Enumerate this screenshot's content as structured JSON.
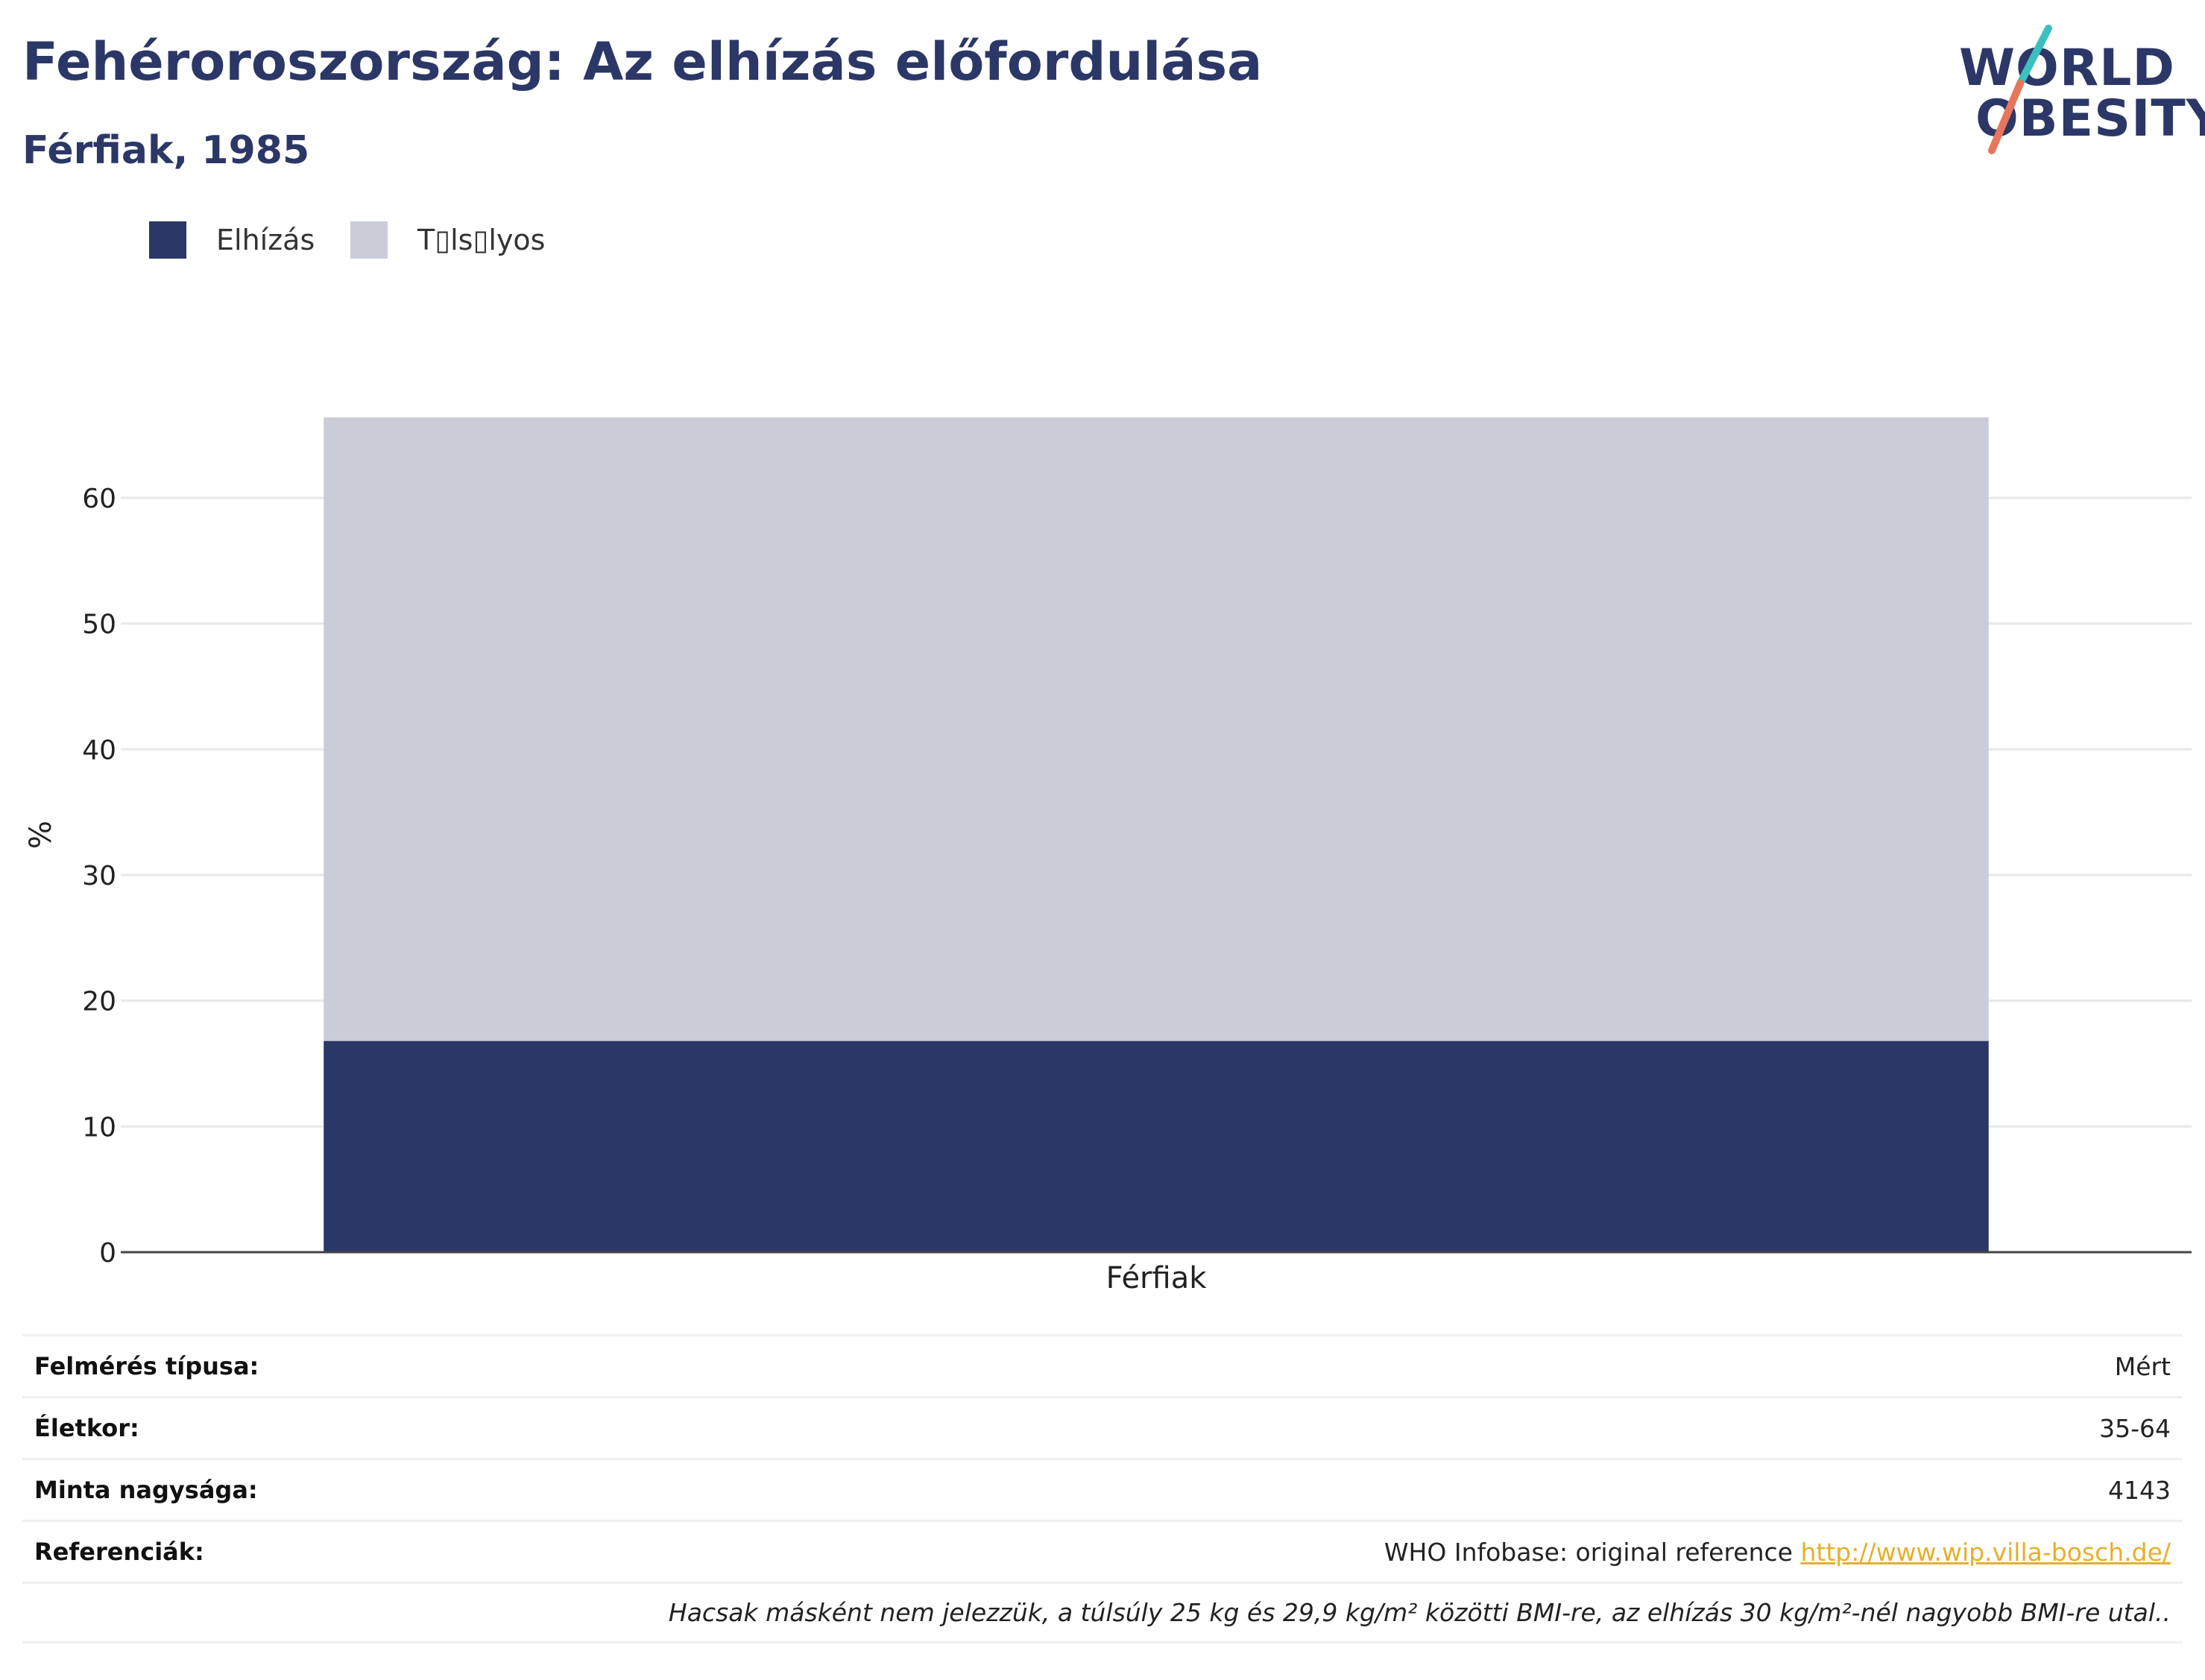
{
  "header": {
    "title": "Fehéroroszország: Az elhízás előfordulása",
    "subtitle": "Férfiak, 1985"
  },
  "logo": {
    "line1": "WORLD",
    "line2": "OBESITY",
    "slash_colors": [
      "#3bbfbf",
      "#e8765a"
    ]
  },
  "colors": {
    "obesity": "#2b3766",
    "overweight": "#cacdd8",
    "title": "#2b3766",
    "link": "#e6b02c"
  },
  "chart_data": {
    "type": "bar",
    "stacked": true,
    "categories": [
      "Férfiak"
    ],
    "series": [
      {
        "name": "Elhízás",
        "values": [
          16.8
        ],
        "color": "#2b3766"
      },
      {
        "name": "T▯ls▯lyos",
        "values": [
          49.6
        ],
        "color": "#cacdd8"
      }
    ],
    "ylabel": "%",
    "xlabel": "",
    "ylim": [
      0,
      66.4
    ],
    "yticks": [
      0,
      10,
      20,
      30,
      40,
      50,
      60
    ],
    "grid": true,
    "legend_position": "top-left"
  },
  "info": {
    "rows": [
      {
        "label": "Felmérés típusa:",
        "value": "Mért"
      },
      {
        "label": "Életkor:",
        "value": "35-64"
      },
      {
        "label": "Minta nagysága:",
        "value": "4143"
      }
    ],
    "reference": {
      "label": "Referenciák:",
      "text": "WHO Infobase: original reference",
      "link": "http://www.wip.villa-bosch.de/"
    },
    "note": "Hacsak másként nem jelezzük, a túlsúly 25 kg és 29,9 kg/m² közötti BMI-re, az elhízás 30 kg/m²-nél nagyobb BMI-re utal.."
  }
}
